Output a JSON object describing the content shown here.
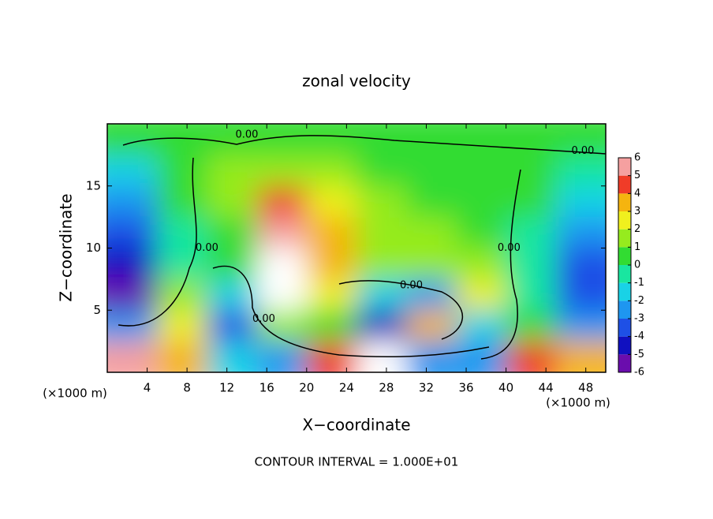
{
  "chart_data": {
    "type": "contour",
    "title": "zonal velocity",
    "x_label": "X−coordinate",
    "y_label": "Z−coordinate",
    "x_unit_left": "(×1000 m)",
    "x_unit_right": "(×1000 m)",
    "footer": "CONTOUR INTERVAL = 1.000E+01",
    "xlim": [
      0,
      50
    ],
    "xticks": [
      4,
      8,
      12,
      16,
      20,
      24,
      28,
      32,
      36,
      40,
      44,
      48
    ],
    "ylim": [
      0,
      20
    ],
    "yticks": [
      5,
      10,
      15
    ],
    "x": [
      2.5,
      7.5,
      12.5,
      17.5,
      22.5,
      27.5,
      32.5,
      37.5,
      42.5,
      47.5
    ],
    "y": [
      18.75,
      16.25,
      13.75,
      11.25,
      8.75,
      6.25,
      3.75,
      1.25
    ],
    "z": [
      [
        0,
        0.5,
        0.5,
        0.5,
        0.5,
        0.5,
        0.5,
        0.5,
        0.5,
        0.5
      ],
      [
        -1.5,
        0.5,
        1,
        1.5,
        1,
        0.5,
        0.5,
        0.5,
        0.5,
        -1
      ],
      [
        -2.5,
        0,
        1,
        4,
        2,
        1,
        0.5,
        0.5,
        0,
        -2
      ],
      [
        -3.5,
        -1,
        0.5,
        5,
        3,
        1,
        1,
        0.5,
        -1,
        -3
      ],
      [
        -4.5,
        -0.5,
        0,
        6.5,
        3,
        1,
        1.5,
        1,
        -1,
        -3.5
      ],
      [
        -6.5,
        1,
        -2,
        6.5,
        2,
        -2,
        -3,
        2,
        -1,
        -3.5
      ],
      [
        -3,
        2,
        -4,
        1,
        0,
        -5,
        3,
        -2,
        0.5,
        -3
      ],
      [
        5,
        3,
        -2,
        -3,
        4,
        6.5,
        -3,
        -3,
        4,
        3
      ]
    ],
    "colorbar_ticks": [
      6,
      5,
      4,
      3,
      2,
      1,
      0,
      -1,
      -2,
      -3,
      -4,
      -5,
      -6
    ],
    "colors": [
      "#6a0dad",
      "#1010c0",
      "#1e50e6",
      "#1e96f0",
      "#19d2e6",
      "#19e6a0",
      "#32dc32",
      "#96eb1e",
      "#f0f01e",
      "#f5b40f",
      "#f03c28",
      "#f5a0a0"
    ],
    "contour_labels": [
      {
        "text": "0.00",
        "x": 14,
        "y": 19.1
      },
      {
        "text": "0.00",
        "x": 47.7,
        "y": 17.8
      },
      {
        "text": "0.00",
        "x": 10,
        "y": 10
      },
      {
        "text": "0.00",
        "x": 30.5,
        "y": 7
      },
      {
        "text": "0.00",
        "x": 40.3,
        "y": 10
      },
      {
        "text": "0.00",
        "x": 15.7,
        "y": 4.3
      }
    ]
  }
}
